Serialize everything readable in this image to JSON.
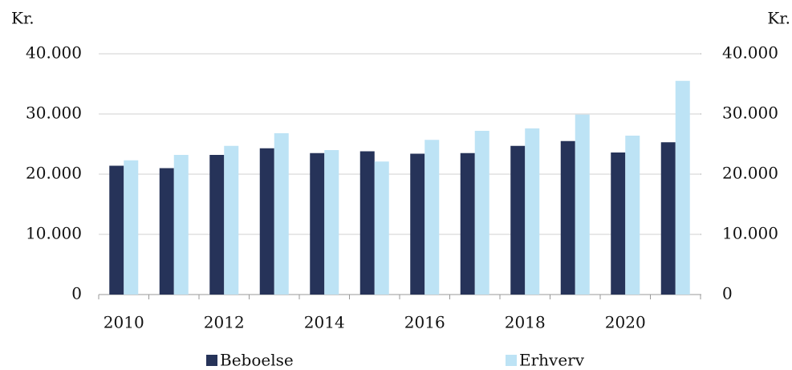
{
  "chart_data": {
    "type": "bar",
    "y_axis_label": "Kr.",
    "y2_axis_label": "Kr.",
    "categories": [
      "2010",
      null,
      "2012",
      null,
      "2014",
      null,
      "2016",
      null,
      "2018",
      null,
      "2020",
      null
    ],
    "series": [
      {
        "name": "Beboelse",
        "color": "#263359",
        "values": [
          21400,
          21000,
          23200,
          24300,
          23500,
          23800,
          23400,
          23500,
          24700,
          25500,
          23600,
          25300
        ]
      },
      {
        "name": "Erhverv",
        "color": "#bde3f5",
        "values": [
          22300,
          23200,
          24700,
          26800,
          24000,
          22100,
          25700,
          27200,
          27600,
          29900,
          26400,
          35500
        ]
      }
    ],
    "ylim": [
      0,
      40000
    ],
    "yticks": [
      0,
      {
        "value": 10000,
        "label": "10.000"
      },
      {
        "value": 20000,
        "label": "20.000"
      },
      {
        "value": 30000,
        "label": "30.000"
      },
      {
        "value": 40000,
        "label": "40.000"
      }
    ],
    "y2lim": [
      0,
      40000
    ],
    "y2ticks": [
      0,
      {
        "value": 10000,
        "label": "10.000"
      },
      {
        "value": 20000,
        "label": "20.000"
      },
      {
        "value": 30000,
        "label": "30.000"
      },
      {
        "value": 40000,
        "label": "40.000"
      }
    ],
    "grid": true,
    "legend": "bottom"
  }
}
